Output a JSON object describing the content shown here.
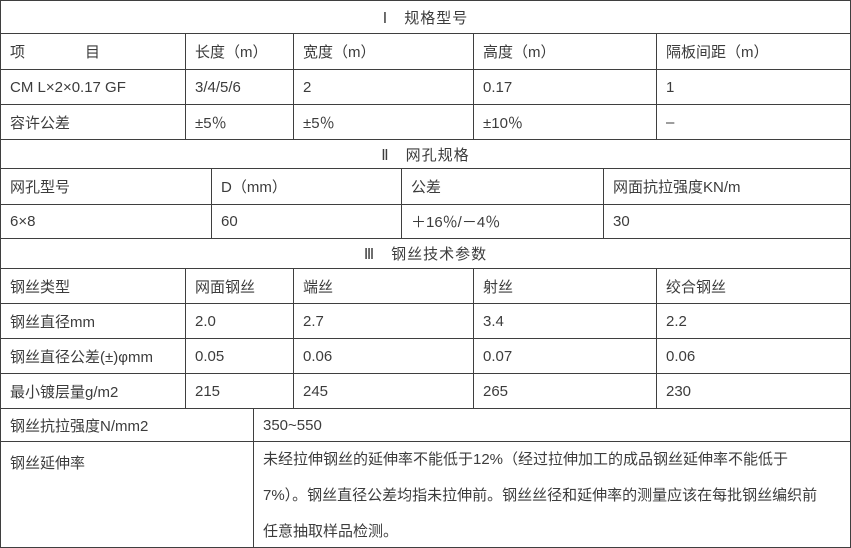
{
  "sections": [
    {
      "title": "Ⅰ　规格型号",
      "headers": [
        "项　　　　目",
        "长度（m）",
        "宽度（m）",
        "高度（m）",
        "隔板间距（m）"
      ],
      "rows": [
        [
          "CM L×2×0.17 GF",
          "3/4/5/6",
          "2",
          "0.17",
          "1"
        ],
        [
          "容许公差",
          "±5％",
          "±5％",
          "±10％",
          "–"
        ]
      ]
    },
    {
      "title": "Ⅱ　网孔规格",
      "headers": [
        "网孔型号",
        "D（mm）",
        "公差",
        "网面抗拉强度KN/m"
      ],
      "rows": [
        [
          "6×8",
          "60",
          "＋16％/－4％",
          "30"
        ]
      ]
    },
    {
      "title": "Ⅲ　钢丝技术参数",
      "headers": [
        "钢丝类型",
        "网面钢丝",
        "端丝",
        "射丝",
        "绞合钢丝"
      ],
      "rows": [
        [
          "钢丝直径mm",
          "2.0",
          "2.7",
          "3.4",
          "2.2"
        ],
        [
          "钢丝直径公差(±)φmm",
          "0.05",
          "0.06",
          "0.07",
          "0.06"
        ],
        [
          "最小镀层量g/m2",
          "215",
          "245",
          "265",
          "230"
        ]
      ]
    }
  ],
  "footer": {
    "tensile_label": "钢丝抗拉强度N/mm2",
    "tensile_value": "350~550",
    "elongation_label": "钢丝延伸率",
    "elongation_value": "未经拉伸钢丝的延伸率不能低于12%（经过拉伸加工的成品钢丝延伸率不能低于7%）。钢丝直径公差均指未拉伸前。钢丝丝径和延伸率的测量应该在每批钢丝编织前任意抽取样品检测。"
  },
  "colors": {
    "border": "#3f3f3f",
    "text": "#3c3c3c",
    "background": "#ffffff"
  }
}
